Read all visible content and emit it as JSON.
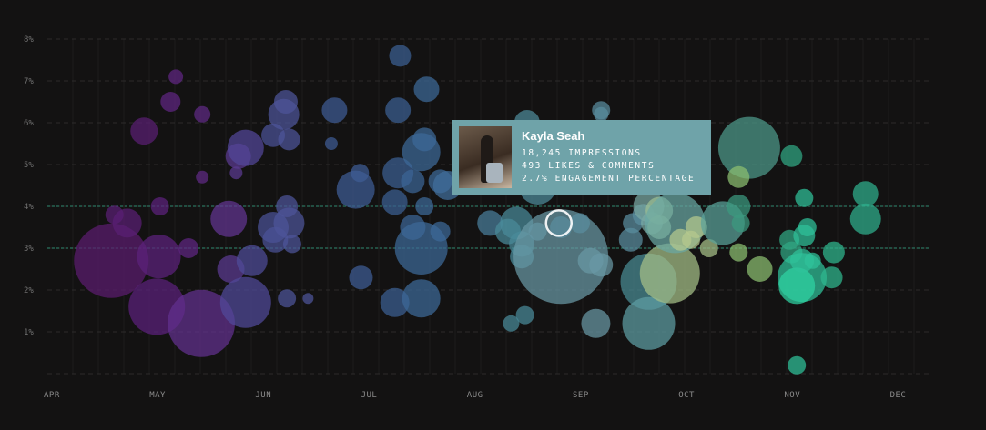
{
  "chart_data": {
    "type": "scatter",
    "x_ticks": [
      "APR",
      "MAY",
      "JUN",
      "JUL",
      "AUG",
      "SEP",
      "OCT",
      "NOV",
      "DEC"
    ],
    "y_ticks": [
      "1%",
      "2%",
      "3%",
      "4%",
      "5%",
      "6%",
      "7%",
      "8%"
    ],
    "ylim": [
      0,
      8
    ],
    "reference_lines": [
      3,
      4
    ],
    "grid": "dashed-horizontal",
    "colors": {
      "start": "#5a1f7a",
      "mid": "#3e6a9a",
      "end": "#2fd4a3",
      "background": "#131212",
      "reference": "#2f8a70"
    },
    "points": [
      {
        "x": 0.57,
        "y": 2.7,
        "s": 41,
        "c": "#5b1c6f"
      },
      {
        "x": 0.6,
        "y": 3.8,
        "s": 10,
        "c": "#5a1f75"
      },
      {
        "x": 0.72,
        "y": 3.6,
        "s": 16,
        "c": "#5a1f75"
      },
      {
        "x": 0.88,
        "y": 5.8,
        "s": 15,
        "c": "#5a1f73"
      },
      {
        "x": 1.0,
        "y": 1.6,
        "s": 31,
        "c": "#5c207b"
      },
      {
        "x": 1.02,
        "y": 2.8,
        "s": 24,
        "c": "#5d217d"
      },
      {
        "x": 1.03,
        "y": 4.0,
        "s": 10,
        "c": "#5d217d"
      },
      {
        "x": 1.13,
        "y": 6.5,
        "s": 11,
        "c": "#5f2582"
      },
      {
        "x": 1.18,
        "y": 7.1,
        "s": 8,
        "c": "#5f2582"
      },
      {
        "x": 1.3,
        "y": 3.0,
        "s": 11,
        "c": "#5f2582"
      },
      {
        "x": 1.42,
        "y": 1.2,
        "s": 37,
        "c": "#63308f"
      },
      {
        "x": 1.43,
        "y": 4.7,
        "s": 7,
        "c": "#5f2a85"
      },
      {
        "x": 1.43,
        "y": 6.2,
        "s": 9,
        "c": "#5f2a85"
      },
      {
        "x": 1.68,
        "y": 3.7,
        "s": 20,
        "c": "#633592"
      },
      {
        "x": 1.7,
        "y": 2.5,
        "s": 15,
        "c": "#5b3a91"
      },
      {
        "x": 1.75,
        "y": 4.8,
        "s": 7,
        "c": "#5b3a91"
      },
      {
        "x": 1.77,
        "y": 5.2,
        "s": 14,
        "c": "#5b3a91"
      },
      {
        "x": 1.84,
        "y": 5.4,
        "s": 20,
        "c": "#53479a"
      },
      {
        "x": 1.84,
        "y": 1.7,
        "s": 28,
        "c": "#504a9a"
      },
      {
        "x": 1.9,
        "y": 2.7,
        "s": 17,
        "c": "#4f4c9a"
      },
      {
        "x": 2.1,
        "y": 3.5,
        "s": 17,
        "c": "#4b5297"
      },
      {
        "x": 2.1,
        "y": 5.7,
        "s": 13,
        "c": "#4b5297"
      },
      {
        "x": 2.12,
        "y": 3.2,
        "s": 14,
        "c": "#4b5297"
      },
      {
        "x": 2.2,
        "y": 6.2,
        "s": 17,
        "c": "#4d559a"
      },
      {
        "x": 2.22,
        "y": 6.5,
        "s": 13,
        "c": "#4d559a"
      },
      {
        "x": 2.23,
        "y": 4.0,
        "s": 12,
        "c": "#4d559a"
      },
      {
        "x": 2.25,
        "y": 3.6,
        "s": 17,
        "c": "#4d559a"
      },
      {
        "x": 2.25,
        "y": 5.6,
        "s": 12,
        "c": "#4d559a"
      },
      {
        "x": 2.28,
        "y": 3.1,
        "s": 10,
        "c": "#4d559a"
      },
      {
        "x": 2.23,
        "y": 1.8,
        "s": 10,
        "c": "#4d559a"
      },
      {
        "x": 2.43,
        "y": 1.8,
        "s": 6,
        "c": "#4d559a"
      },
      {
        "x": 2.68,
        "y": 6.3,
        "s": 14,
        "c": "#3f5b94"
      },
      {
        "x": 2.65,
        "y": 5.5,
        "s": 7,
        "c": "#3f5b94"
      },
      {
        "x": 2.92,
        "y": 4.8,
        "s": 10,
        "c": "#3f5d95"
      },
      {
        "x": 2.88,
        "y": 4.4,
        "s": 21,
        "c": "#3f5d95"
      },
      {
        "x": 2.93,
        "y": 2.3,
        "s": 13,
        "c": "#3f5d95"
      },
      {
        "x": 3.25,
        "y": 1.7,
        "s": 16,
        "c": "#3c5f93"
      },
      {
        "x": 3.25,
        "y": 4.1,
        "s": 14,
        "c": "#3c5f93"
      },
      {
        "x": 3.28,
        "y": 4.8,
        "s": 17,
        "c": "#3c5f93"
      },
      {
        "x": 3.28,
        "y": 6.3,
        "s": 14,
        "c": "#3c5f93"
      },
      {
        "x": 3.3,
        "y": 7.6,
        "s": 12,
        "c": "#3c5f93"
      },
      {
        "x": 3.42,
        "y": 3.5,
        "s": 14,
        "c": "#3c6596"
      },
      {
        "x": 3.42,
        "y": 4.6,
        "s": 13,
        "c": "#3c6596"
      },
      {
        "x": 3.5,
        "y": 3.0,
        "s": 29,
        "c": "#3d6a98"
      },
      {
        "x": 3.5,
        "y": 5.3,
        "s": 21,
        "c": "#3d6a98"
      },
      {
        "x": 3.5,
        "y": 1.8,
        "s": 21,
        "c": "#3d6a98"
      },
      {
        "x": 3.53,
        "y": 5.6,
        "s": 13,
        "c": "#3d6a98"
      },
      {
        "x": 3.53,
        "y": 4.0,
        "s": 10,
        "c": "#3d6a98"
      },
      {
        "x": 3.55,
        "y": 6.8,
        "s": 14,
        "c": "#3d6a98"
      },
      {
        "x": 3.68,
        "y": 3.4,
        "s": 11,
        "c": "#3d6a98"
      },
      {
        "x": 3.68,
        "y": 4.6,
        "s": 13,
        "c": "#3d6a98"
      },
      {
        "x": 3.75,
        "y": 4.5,
        "s": 16,
        "c": "#416f9d"
      },
      {
        "x": 4.15,
        "y": 3.6,
        "s": 14,
        "c": "#4a7e9b"
      },
      {
        "x": 4.15,
        "y": 5.3,
        "s": 18,
        "c": "#4a7e9b"
      },
      {
        "x": 4.3,
        "y": 5.2,
        "s": 25,
        "c": "#4d84a2"
      },
      {
        "x": 4.3,
        "y": 4.9,
        "s": 18,
        "c": "#4d84a2"
      },
      {
        "x": 4.32,
        "y": 3.4,
        "s": 14,
        "c": "#4a8a9a"
      },
      {
        "x": 4.35,
        "y": 1.2,
        "s": 9,
        "c": "#4a8a9a"
      },
      {
        "x": 4.4,
        "y": 3.6,
        "s": 18,
        "c": "#4a8a9a"
      },
      {
        "x": 4.45,
        "y": 3.1,
        "s": 14,
        "c": "#4a8a9a"
      },
      {
        "x": 4.45,
        "y": 2.8,
        "s": 13,
        "c": "#4a8a9a"
      },
      {
        "x": 4.48,
        "y": 1.4,
        "s": 10,
        "c": "#4a8a9a"
      },
      {
        "x": 4.5,
        "y": 6.0,
        "s": 14,
        "c": "#4d8a9a"
      },
      {
        "x": 4.6,
        "y": 4.5,
        "s": 21,
        "c": "#4d8a9a"
      },
      {
        "x": 4.6,
        "y": 3.4,
        "s": 10,
        "c": "#5a8e9f"
      },
      {
        "x": 4.82,
        "y": 2.8,
        "s": 52,
        "c": "#6a98a5"
      },
      {
        "x": 4.82,
        "y": 3.5,
        "s": 12,
        "c": "#5a8e9f"
      },
      {
        "x": 5.0,
        "y": 3.6,
        "s": 11,
        "c": "#5a8e9f"
      },
      {
        "x": 5.1,
        "y": 2.7,
        "s": 14,
        "c": "#6a98a5"
      },
      {
        "x": 5.2,
        "y": 2.6,
        "s": 13,
        "c": "#6a98a5"
      },
      {
        "x": 5.15,
        "y": 1.2,
        "s": 16,
        "c": "#6a98a5"
      },
      {
        "x": 5.2,
        "y": 6.3,
        "s": 10,
        "c": "#5a8e9f"
      },
      {
        "x": 5.2,
        "y": 6.2,
        "s": 8,
        "c": "#5a8e9f"
      },
      {
        "x": 5.5,
        "y": 3.6,
        "s": 11,
        "c": "#5a8e9f"
      },
      {
        "x": 5.48,
        "y": 3.2,
        "s": 13,
        "c": "#5a8e9f"
      },
      {
        "x": 5.6,
        "y": 3.8,
        "s": 12,
        "c": "#5a8e9f"
      },
      {
        "x": 5.65,
        "y": 2.2,
        "s": 31,
        "c": "#498c94"
      },
      {
        "x": 5.65,
        "y": 1.2,
        "s": 29,
        "c": "#5e9ea3"
      },
      {
        "x": 5.65,
        "y": 4.0,
        "s": 17,
        "c": "#7aa9a3"
      },
      {
        "x": 5.68,
        "y": 3.6,
        "s": 12,
        "c": "#7aa9a3"
      },
      {
        "x": 5.75,
        "y": 3.9,
        "s": 15,
        "c": "#9cbf94"
      },
      {
        "x": 5.75,
        "y": 3.5,
        "s": 13,
        "c": "#9cbf94"
      },
      {
        "x": 5.85,
        "y": 2.4,
        "s": 33,
        "c": "#a6c088"
      },
      {
        "x": 5.9,
        "y": 3.6,
        "s": 33,
        "c": "#6aa8a4"
      },
      {
        "x": 5.95,
        "y": 3.2,
        "s": 12,
        "c": "#b5c98e"
      },
      {
        "x": 6.05,
        "y": 3.2,
        "s": 10,
        "c": "#b5c98e"
      },
      {
        "x": 6.1,
        "y": 3.5,
        "s": 12,
        "c": "#b5c98e"
      },
      {
        "x": 6.22,
        "y": 3.0,
        "s": 10,
        "c": "#a7c088"
      },
      {
        "x": 6.35,
        "y": 3.6,
        "s": 24,
        "c": "#5aa29a"
      },
      {
        "x": 6.6,
        "y": 5.4,
        "s": 34,
        "c": "#4d9a8a"
      },
      {
        "x": 6.5,
        "y": 4.0,
        "s": 13,
        "c": "#3b9a7f"
      },
      {
        "x": 6.5,
        "y": 4.7,
        "s": 12,
        "c": "#8cbf70"
      },
      {
        "x": 6.52,
        "y": 3.6,
        "s": 10,
        "c": "#3b9a7f"
      },
      {
        "x": 6.5,
        "y": 2.9,
        "s": 10,
        "c": "#8cbf70"
      },
      {
        "x": 6.7,
        "y": 2.5,
        "s": 14,
        "c": "#8cbf70"
      },
      {
        "x": 7.0,
        "y": 5.2,
        "s": 12,
        "c": "#31a884"
      },
      {
        "x": 6.98,
        "y": 3.2,
        "s": 11,
        "c": "#31a884"
      },
      {
        "x": 7.0,
        "y": 2.9,
        "s": 12,
        "c": "#31a884"
      },
      {
        "x": 7.1,
        "y": 2.3,
        "s": 27,
        "c": "#2fc29a"
      },
      {
        "x": 7.05,
        "y": 2.1,
        "s": 20,
        "c": "#2fd4a3"
      },
      {
        "x": 7.1,
        "y": 2.7,
        "s": 13,
        "c": "#2fc29a"
      },
      {
        "x": 7.12,
        "y": 3.3,
        "s": 12,
        "c": "#2fc29a"
      },
      {
        "x": 7.12,
        "y": 4.2,
        "s": 10,
        "c": "#2fc29a"
      },
      {
        "x": 7.15,
        "y": 3.5,
        "s": 10,
        "c": "#2fc29a"
      },
      {
        "x": 7.2,
        "y": 2.7,
        "s": 9,
        "c": "#2fc29a"
      },
      {
        "x": 7.4,
        "y": 2.9,
        "s": 12,
        "c": "#2fb88f"
      },
      {
        "x": 7.38,
        "y": 2.3,
        "s": 12,
        "c": "#2fb88f"
      },
      {
        "x": 7.7,
        "y": 4.3,
        "s": 14,
        "c": "#2fb08d"
      },
      {
        "x": 7.7,
        "y": 3.7,
        "s": 17,
        "c": "#2fb08d"
      },
      {
        "x": 7.05,
        "y": 0.2,
        "s": 10,
        "c": "#2fc29a"
      }
    ],
    "highlight": {
      "x": 4.8,
      "y": 3.6
    },
    "tooltip": {
      "name": "Kayla Seah",
      "impressions": "18,245 IMPRESSIONS",
      "likes": "493 LIKES & COMMENTS",
      "engagement": "2.7% ENGAGEMENT PERCENTAGE"
    }
  }
}
